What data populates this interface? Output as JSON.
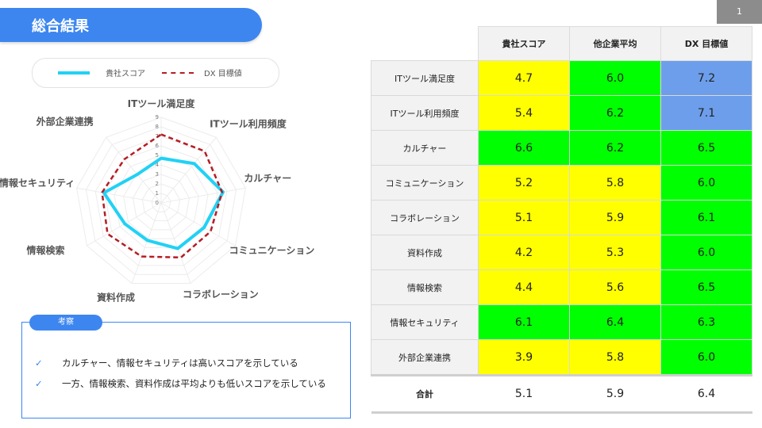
{
  "header": {
    "title": "総合結果",
    "page_number": "1"
  },
  "legend": {
    "series1_label": "貴社スコア",
    "series2_label": "DX 目標値"
  },
  "chart_data": {
    "type": "radar",
    "categories": [
      "ITツール満足度",
      "ITツール利用頻度",
      "カルチャー",
      "コミュニケーション",
      "コラボレーション",
      "資料作成",
      "情報検索",
      "情報セキュリティ",
      "外部企業連携"
    ],
    "series": [
      {
        "name": "貴社スコア",
        "values": [
          4.7,
          5.4,
          6.6,
          5.2,
          5.1,
          4.2,
          4.4,
          6.1,
          3.9
        ],
        "color": "#21d1f5"
      },
      {
        "name": "DX 目標値",
        "values": [
          7.2,
          7.1,
          6.5,
          6.0,
          6.1,
          6.0,
          6.5,
          6.3,
          6.0
        ],
        "color": "#b51d24"
      }
    ],
    "rlim": [
      0,
      9
    ],
    "ticks": [
      "0",
      "1",
      "2",
      "3",
      "4",
      "5",
      "6",
      "7",
      "8",
      "9"
    ]
  },
  "notes": {
    "title": "考察",
    "items": [
      "カルチャー、情報セキュリティは高いスコアを示している",
      "一方、情報検索、資料作成は平均よりも低いスコアを示している"
    ]
  },
  "table": {
    "headers": [
      "貴社スコア",
      "他企業平均",
      "DX 目標値"
    ],
    "rows": [
      {
        "label": "ITツール満足度",
        "values": [
          "4.7",
          "6.0",
          "7.2"
        ],
        "colors": [
          "#ffff00",
          "#00ff00",
          "#6d9eeb"
        ]
      },
      {
        "label": "ITツール利用頻度",
        "values": [
          "5.4",
          "6.2",
          "7.1"
        ],
        "colors": [
          "#ffff00",
          "#00ff00",
          "#6d9eeb"
        ]
      },
      {
        "label": "カルチャー",
        "values": [
          "6.6",
          "6.2",
          "6.5"
        ],
        "colors": [
          "#00ff00",
          "#00ff00",
          "#00ff00"
        ]
      },
      {
        "label": "コミュニケーション",
        "values": [
          "5.2",
          "5.8",
          "6.0"
        ],
        "colors": [
          "#ffff00",
          "#ffff00",
          "#00ff00"
        ]
      },
      {
        "label": "コラボレーション",
        "values": [
          "5.1",
          "5.9",
          "6.1"
        ],
        "colors": [
          "#ffff00",
          "#ffff00",
          "#00ff00"
        ]
      },
      {
        "label": "資料作成",
        "values": [
          "4.2",
          "5.3",
          "6.0"
        ],
        "colors": [
          "#ffff00",
          "#ffff00",
          "#00ff00"
        ]
      },
      {
        "label": "情報検索",
        "values": [
          "4.4",
          "5.6",
          "6.5"
        ],
        "colors": [
          "#ffff00",
          "#ffff00",
          "#00ff00"
        ]
      },
      {
        "label": "情報セキュリティ",
        "values": [
          "6.1",
          "6.4",
          "6.3"
        ],
        "colors": [
          "#00ff00",
          "#00ff00",
          "#00ff00"
        ]
      },
      {
        "label": "外部企業連携",
        "values": [
          "3.9",
          "5.8",
          "6.0"
        ],
        "colors": [
          "#ffff00",
          "#ffff00",
          "#00ff00"
        ]
      }
    ],
    "total": {
      "label": "合計",
      "values": [
        "5.1",
        "5.9",
        "6.4"
      ]
    }
  }
}
